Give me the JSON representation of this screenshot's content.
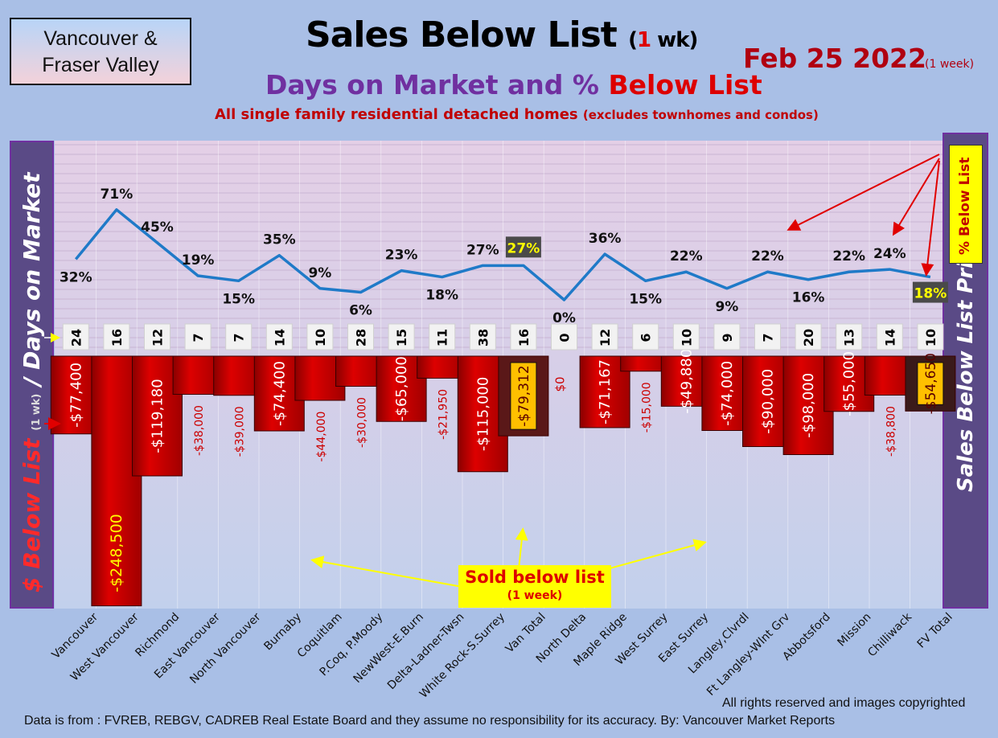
{
  "header": {
    "region_line1": "Vancouver &",
    "region_line2": "Fraser Valley",
    "title_main": "Sales Below List",
    "title_paren_open": "(",
    "title_paren_num": "1",
    "title_paren_rest": " wk)",
    "date": "Feb 25  2022",
    "date_note": "(1 week)",
    "subtitle_part1": "Days on Market and % ",
    "subtitle_part2": "Below List",
    "description": "All single family residential detached homes",
    "description_note": "(excludes townhomes and condos)"
  },
  "side_labels": {
    "left_red": "$ Below List",
    "left_small": "(1 wk)",
    "left_rest": "/ Days on Market",
    "right": "Sales Below List Price",
    "badge": "% Below List"
  },
  "annotation": {
    "sold_main": "Sold below list",
    "sold_sub": "(1 week)"
  },
  "footer": {
    "rights": "All rights reserved and  images copyrighted",
    "source": "Data is from : FVREB, REBGV, CADREB Real Estate Board and they assume no responsibility for its accuracy. By: Vancouver Market Reports"
  },
  "chart_data": {
    "type": "bar",
    "categories": [
      "Vancouver",
      "West Vancouver",
      "Richmond",
      "East Vancouver",
      "North Vancouver",
      "Burnaby",
      "Coquitlam",
      "P.Coq, P.Moody",
      "NewWest-E.Burn",
      "Delta-Ladner-Twsn",
      "White Rock-S.Surrey",
      "Van Total",
      "North Delta",
      "Maple Ridge",
      "West Surrey",
      "East Surrey",
      "Langley,Clvrdl",
      "Ft Langley-Wlnt Grv",
      "Abbotsford",
      "Mission",
      "Chilliwack",
      "FV Total"
    ],
    "series": [
      {
        "name": "$ Below List",
        "values": [
          -77400,
          -248500,
          -119180,
          -38000,
          -39000,
          -74400,
          -44000,
          -30000,
          -65000,
          -21950,
          -115000,
          -79312,
          0,
          -71167,
          -15000,
          -49880,
          -74000,
          -90000,
          -98000,
          -55000,
          -38800,
          -54650
        ]
      },
      {
        "name": "Days on Market",
        "values": [
          24,
          16,
          12,
          7,
          7,
          14,
          10,
          28,
          15,
          11,
          38,
          16,
          0,
          12,
          6,
          10,
          9,
          7,
          20,
          13,
          14,
          10
        ]
      },
      {
        "name": "% Below List",
        "values": [
          32,
          71,
          45,
          19,
          15,
          35,
          9,
          6,
          23,
          18,
          27,
          27,
          0,
          36,
          15,
          22,
          9,
          22,
          16,
          22,
          24,
          18
        ]
      }
    ],
    "bar_labels": [
      "-$77,400",
      "-$248,500",
      "-$119,180",
      "-$38,000",
      "-$39,000",
      "-$74,400",
      "-$44,000",
      "-$30,000",
      "-$65,000",
      "-$21,950",
      "-$115,000",
      "-$79,312",
      "$0",
      "-$71,167",
      "-$15,000",
      "-$49,880",
      "-$74,000",
      "-$90,000",
      "-$98,000",
      "-$55,000",
      "-$38,800",
      "-$54,650"
    ],
    "pct_labels": [
      "32%",
      "71%",
      "45%",
      "19%",
      "15%",
      "35%",
      "9%",
      "6%",
      "23%",
      "18%",
      "27%",
      "27%",
      "0%",
      "36%",
      "15%",
      "22%",
      "9%",
      "22%",
      "16%",
      "22%",
      "24%",
      "18%"
    ],
    "dom_labels": [
      "24",
      "16",
      "12",
      "7",
      "7",
      "14",
      "10",
      "28",
      "15",
      "11",
      "38",
      "16",
      "0",
      "12",
      "6",
      "10",
      "9",
      "7",
      "20",
      "13",
      "14",
      "10"
    ],
    "highlight_categories": [
      "Van Total",
      "FV Total"
    ],
    "colors": {
      "bar": "#cc0000",
      "bar_van_total": "#5a1818",
      "bar_fv_total": "#3a1a1a",
      "highlight_label_bg": "#ffc000",
      "line": "#1f7ac8",
      "pct_highlight_bg": "#4a4a4a",
      "pct_highlight_text": "#ffff00"
    }
  }
}
